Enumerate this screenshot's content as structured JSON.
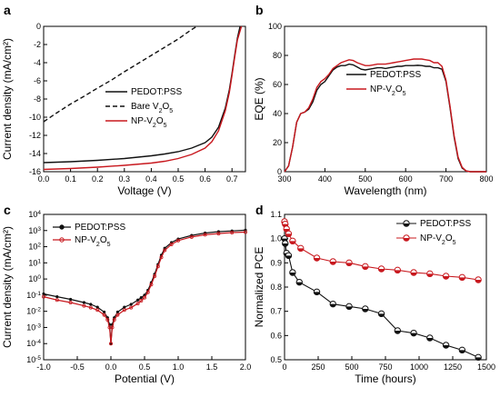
{
  "colors": {
    "black": "#111111",
    "red": "#c8181e"
  },
  "chart_data": [
    {
      "panel": "a",
      "type": "line",
      "xlabel": "Voltage (V)",
      "ylabel": "Current density (mA/cm²)",
      "xlim": [
        0.0,
        0.75
      ],
      "ylim": [
        -16,
        0
      ],
      "xticks": [
        "0.0",
        "0.1",
        "0.2",
        "0.3",
        "0.4",
        "0.5",
        "0.6",
        "0.7"
      ],
      "yticks": [
        "-16",
        "-14",
        "-12",
        "-10",
        "-8",
        "-6",
        "-4",
        "-2",
        "0"
      ],
      "series": [
        {
          "name": "PEDOT:PSS",
          "color": "#111111",
          "dash": "solid",
          "x": [
            0.0,
            0.1,
            0.2,
            0.3,
            0.4,
            0.45,
            0.5,
            0.55,
            0.6,
            0.625,
            0.65,
            0.675,
            0.69,
            0.7,
            0.71,
            0.72,
            0.73
          ],
          "y": [
            -15.0,
            -14.9,
            -14.75,
            -14.55,
            -14.25,
            -14.05,
            -13.8,
            -13.4,
            -12.8,
            -12.2,
            -11.1,
            -9.0,
            -7.0,
            -5.2,
            -3.2,
            -1.3,
            0.0
          ]
        },
        {
          "name": "Bare V₂O₅",
          "color": "#111111",
          "dash": "dashed",
          "x": [
            0.0,
            0.05,
            0.1,
            0.15,
            0.2,
            0.25,
            0.3,
            0.35,
            0.4,
            0.45,
            0.5,
            0.55,
            0.57
          ],
          "y": [
            -10.5,
            -9.5,
            -8.55,
            -7.7,
            -6.8,
            -5.95,
            -5.0,
            -4.1,
            -3.2,
            -2.3,
            -1.4,
            -0.35,
            0.0
          ]
        },
        {
          "name": "NP-V₂O₅",
          "color": "#c8181e",
          "dash": "solid",
          "x": [
            0.0,
            0.1,
            0.2,
            0.3,
            0.4,
            0.45,
            0.5,
            0.55,
            0.6,
            0.625,
            0.65,
            0.675,
            0.69,
            0.7,
            0.71,
            0.72,
            0.735
          ],
          "y": [
            -15.75,
            -15.65,
            -15.5,
            -15.3,
            -15.05,
            -14.85,
            -14.55,
            -14.1,
            -13.4,
            -12.7,
            -11.5,
            -9.3,
            -7.3,
            -5.4,
            -3.4,
            -1.5,
            0.0
          ]
        }
      ]
    },
    {
      "panel": "b",
      "type": "line",
      "xlabel": "Wavelength (nm)",
      "ylabel": "EQE (%)",
      "xlim": [
        300,
        800
      ],
      "ylim": [
        0,
        100
      ],
      "xticks": [
        "300",
        "400",
        "500",
        "600",
        "700",
        "800"
      ],
      "yticks": [
        "0",
        "20",
        "40",
        "60",
        "80",
        "100"
      ],
      "series": [
        {
          "name": "PEDOT:PSS",
          "color": "#111111",
          "x": [
            300,
            310,
            320,
            330,
            340,
            350,
            360,
            370,
            380,
            390,
            400,
            410,
            420,
            430,
            440,
            450,
            460,
            470,
            480,
            490,
            500,
            510,
            520,
            530,
            540,
            550,
            560,
            570,
            580,
            590,
            600,
            610,
            620,
            630,
            640,
            650,
            660,
            670,
            680,
            690,
            700,
            710,
            720,
            730,
            740,
            750,
            760,
            770,
            780,
            790,
            800
          ],
          "y": [
            0,
            4,
            17,
            34,
            40,
            41,
            43,
            48,
            56,
            60,
            62,
            66,
            70,
            72,
            73,
            73,
            74,
            73.5,
            72,
            70.5,
            70,
            70.5,
            71,
            71.5,
            71.5,
            71,
            71.5,
            72,
            72.5,
            72.5,
            73,
            73,
            73,
            73.2,
            73,
            72.5,
            72.5,
            71.5,
            71.5,
            70.5,
            62,
            44,
            24,
            9,
            2.5,
            0.5,
            0,
            0,
            0,
            0,
            0
          ]
        },
        {
          "name": "NP-V₂O₅",
          "color": "#c8181e",
          "x": [
            300,
            310,
            320,
            330,
            340,
            350,
            360,
            370,
            380,
            390,
            400,
            410,
            420,
            430,
            440,
            450,
            460,
            470,
            480,
            490,
            500,
            510,
            520,
            530,
            540,
            550,
            560,
            570,
            580,
            590,
            600,
            610,
            620,
            630,
            640,
            650,
            660,
            670,
            680,
            690,
            700,
            710,
            720,
            730,
            740,
            750,
            760,
            770,
            780,
            790,
            800
          ],
          "y": [
            0,
            4,
            17,
            34,
            40,
            41,
            44,
            50,
            58,
            62,
            64,
            67,
            71,
            73,
            75,
            76,
            77,
            76.5,
            75,
            74,
            73,
            73,
            73.5,
            74,
            74,
            74,
            74.5,
            75,
            75.5,
            76,
            76.5,
            77,
            77.5,
            77.5,
            77.5,
            77,
            76.5,
            75,
            75,
            72.5,
            63,
            45,
            25,
            10,
            3,
            0.5,
            0,
            0,
            0,
            0,
            0
          ]
        }
      ]
    },
    {
      "panel": "c",
      "type": "line",
      "xlabel": "Potential (V)",
      "ylabel": "Current density (mA/cm²)",
      "yscale": "log",
      "xlim": [
        -1.0,
        2.0
      ],
      "ylim_log10": [
        -5,
        4
      ],
      "xticks": [
        "-1.0",
        "-0.5",
        "0.0",
        "0.5",
        "1.0",
        "1.5",
        "2.0"
      ],
      "yticks": [
        {
          "base": "10",
          "exp": "-5"
        },
        {
          "base": "10",
          "exp": "-4"
        },
        {
          "base": "10",
          "exp": "-3"
        },
        {
          "base": "10",
          "exp": "-2"
        },
        {
          "base": "10",
          "exp": "-1"
        },
        {
          "base": "10",
          "exp": "0"
        },
        {
          "base": "10",
          "exp": "1"
        },
        {
          "base": "10",
          "exp": "2"
        },
        {
          "base": "10",
          "exp": "3"
        },
        {
          "base": "10",
          "exp": "4"
        }
      ],
      "series": [
        {
          "name": "PEDOT:PSS",
          "color": "#111111",
          "x": [
            -1.0,
            -0.8,
            -0.6,
            -0.4,
            -0.3,
            -0.2,
            -0.1,
            -0.05,
            -0.02,
            0.0,
            0.02,
            0.05,
            0.1,
            0.2,
            0.3,
            0.4,
            0.45,
            0.5,
            0.55,
            0.6,
            0.65,
            0.7,
            0.75,
            0.8,
            0.9,
            1.0,
            1.2,
            1.4,
            1.6,
            1.8,
            2.0
          ],
          "y": [
            0.12,
            0.08,
            0.055,
            0.035,
            0.027,
            0.018,
            0.009,
            0.004,
            0.0015,
            0.0001,
            0.0015,
            0.004,
            0.009,
            0.018,
            0.027,
            0.05,
            0.07,
            0.1,
            0.2,
            0.6,
            2,
            8,
            30,
            80,
            180,
            300,
            500,
            700,
            850,
            950,
            1050
          ]
        },
        {
          "name": "NP-V₂O₅",
          "color": "#c8181e",
          "x": [
            -1.0,
            -0.8,
            -0.6,
            -0.4,
            -0.3,
            -0.2,
            -0.1,
            -0.05,
            -0.02,
            0.0,
            0.02,
            0.05,
            0.1,
            0.2,
            0.3,
            0.4,
            0.45,
            0.5,
            0.55,
            0.6,
            0.65,
            0.7,
            0.75,
            0.8,
            0.9,
            1.0,
            1.2,
            1.4,
            1.6,
            1.8,
            2.0
          ],
          "y": [
            0.08,
            0.05,
            0.035,
            0.022,
            0.017,
            0.012,
            0.006,
            0.003,
            0.001,
            0.0001,
            0.001,
            0.003,
            0.006,
            0.012,
            0.017,
            0.03,
            0.045,
            0.07,
            0.15,
            0.45,
            1.5,
            6,
            22,
            60,
            140,
            240,
            400,
            550,
            650,
            750,
            800
          ]
        }
      ]
    },
    {
      "panel": "d",
      "type": "line",
      "xlabel": "Time (hours)",
      "ylabel": "Normalized PCE",
      "xlim": [
        0,
        1500
      ],
      "ylim": [
        0.5,
        1.1
      ],
      "xticks": [
        "0",
        "250",
        "500",
        "750",
        "1000",
        "1250",
        "1500"
      ],
      "yticks": [
        "0.5",
        "0.6",
        "0.7",
        "0.8",
        "0.9",
        "1.0",
        "1.1"
      ],
      "series": [
        {
          "name": "PEDOT:PSS",
          "color": "#111111",
          "marker": "circle",
          "x": [
            0,
            5,
            15,
            30,
            60,
            110,
            240,
            360,
            480,
            600,
            720,
            840,
            960,
            1080,
            1200,
            1320,
            1440
          ],
          "y": [
            1.0,
            0.98,
            0.94,
            0.93,
            0.86,
            0.82,
            0.78,
            0.73,
            0.72,
            0.71,
            0.69,
            0.62,
            0.61,
            0.59,
            0.56,
            0.54,
            0.51
          ]
        },
        {
          "name": "NP-V₂O₅",
          "color": "#c8181e",
          "marker": "circle",
          "x": [
            0,
            5,
            15,
            30,
            60,
            120,
            240,
            360,
            480,
            600,
            720,
            840,
            960,
            1080,
            1200,
            1320,
            1440
          ],
          "y": [
            1.07,
            1.06,
            1.04,
            1.02,
            0.99,
            0.96,
            0.92,
            0.905,
            0.9,
            0.885,
            0.875,
            0.87,
            0.86,
            0.855,
            0.845,
            0.84,
            0.83
          ]
        }
      ]
    }
  ]
}
